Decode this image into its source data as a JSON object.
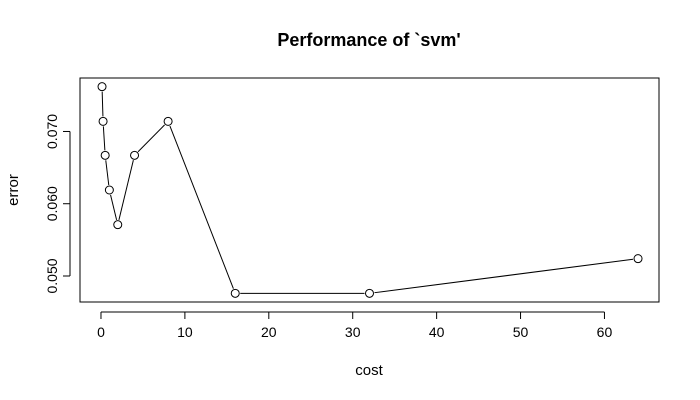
{
  "chart_data": {
    "type": "line",
    "title": "Performance of `svm'",
    "xlabel": "cost",
    "ylabel": "error",
    "x_ticks": [
      0,
      10,
      20,
      30,
      40,
      50,
      60
    ],
    "y_ticks": [
      0.05,
      0.06,
      0.07
    ],
    "y_tick_labels": [
      "0.050",
      "0.060",
      "0.070"
    ],
    "xlim": [
      -2.5,
      66.5
    ],
    "ylim": [
      0.0464,
      0.0774
    ],
    "series": [
      {
        "x": [
          0.125,
          0.25,
          0.5,
          1,
          2,
          4,
          8,
          16,
          32,
          64
        ],
        "values": [
          0.0762,
          0.0714,
          0.0667,
          0.0619,
          0.0571,
          0.0667,
          0.0714,
          0.0476,
          0.0476,
          0.0524
        ]
      }
    ],
    "grid": false,
    "markers": "open-circle"
  }
}
